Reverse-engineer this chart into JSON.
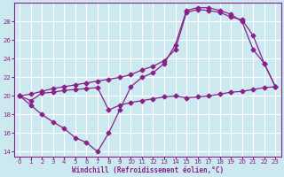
{
  "xlabel": "Windchill (Refroidissement éolien,°C)",
  "xlim": [
    -0.5,
    23.5
  ],
  "ylim": [
    13.5,
    30.0
  ],
  "yticks": [
    14,
    16,
    18,
    20,
    22,
    24,
    26,
    28
  ],
  "xticks": [
    0,
    1,
    2,
    3,
    4,
    5,
    6,
    7,
    8,
    9,
    10,
    11,
    12,
    13,
    14,
    15,
    16,
    17,
    18,
    19,
    20,
    21,
    22,
    23
  ],
  "bg_color": "#cde9f0",
  "line_color": "#882288",
  "grid_color": "#ffffff",
  "line1_x": [
    0,
    1,
    2,
    3,
    4,
    5,
    6,
    7,
    8,
    9,
    10,
    11,
    12,
    13,
    14,
    15,
    16,
    17,
    18,
    19,
    20,
    21,
    22,
    23
  ],
  "line1_y": [
    20.0,
    19.0,
    18.0,
    17.2,
    16.5,
    15.5,
    15.0,
    14.0,
    16.0,
    18.5,
    21.0,
    22.0,
    22.5,
    23.5,
    25.5,
    29.2,
    29.5,
    29.5,
    29.2,
    28.8,
    28.0,
    25.0,
    23.5,
    21.0
  ],
  "line2_x": [
    0,
    1,
    2,
    3,
    4,
    5,
    6,
    7,
    8,
    9,
    10,
    11,
    12,
    13,
    14,
    15,
    16,
    17,
    18,
    19,
    20,
    21,
    22,
    23
  ],
  "line2_y": [
    20.0,
    20.2,
    20.5,
    20.8,
    21.0,
    21.2,
    21.4,
    21.6,
    21.8,
    22.0,
    22.3,
    22.8,
    23.2,
    23.8,
    25.0,
    29.0,
    29.3,
    29.2,
    29.0,
    28.5,
    28.2,
    26.5,
    23.5,
    21.0
  ],
  "line3_x": [
    0,
    1,
    2,
    3,
    4,
    5,
    6,
    7,
    8,
    9,
    10,
    11,
    12,
    13,
    14,
    15,
    16,
    17,
    18,
    19,
    20,
    21,
    22,
    23
  ],
  "line3_y": [
    20.0,
    19.5,
    20.3,
    20.4,
    20.6,
    20.7,
    20.8,
    20.9,
    18.5,
    19.0,
    19.3,
    19.5,
    19.7,
    19.9,
    20.0,
    19.8,
    19.9,
    20.0,
    20.2,
    20.4,
    20.5,
    20.7,
    20.9,
    21.0
  ]
}
